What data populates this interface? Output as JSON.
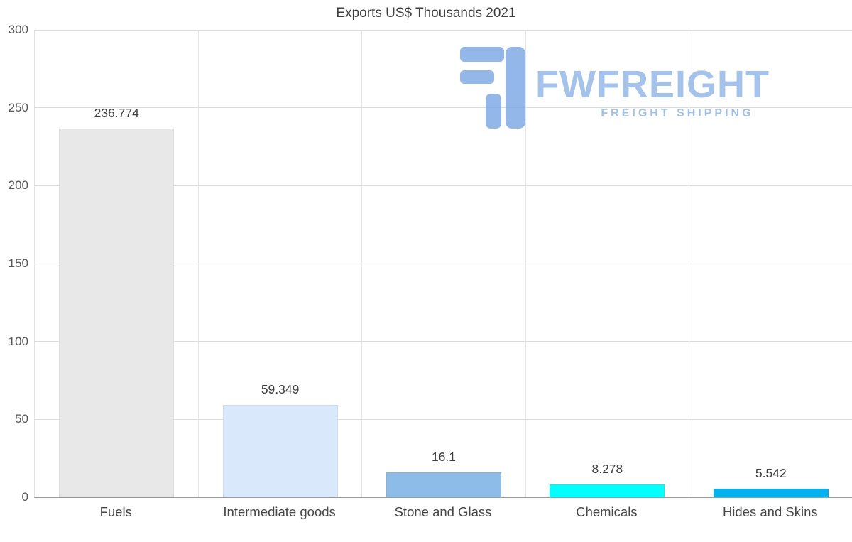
{
  "chart_data": {
    "type": "bar",
    "title": "Exports US$ Thousands 2021",
    "categories": [
      "Fuels",
      "Intermediate goods",
      "Stone and Glass",
      "Chemicals",
      "Hides and Skins"
    ],
    "values": [
      236.774,
      59.349,
      16.1,
      8.278,
      5.542
    ],
    "value_labels": [
      "236.774",
      "59.349",
      "16.1",
      "8.278",
      "5.542"
    ],
    "bar_colors": [
      "#e8e8e8",
      "#d9e8fb",
      "#8dbce8",
      "#00ffff",
      "#00b2ef"
    ],
    "xlabel": "",
    "ylabel": "",
    "ylim": [
      0,
      300
    ],
    "yticks": [
      0,
      50,
      100,
      150,
      200,
      250,
      300
    ],
    "grid": true,
    "legend": "none"
  },
  "watermark": {
    "brand": "FWFREIGHT",
    "tagline": "FREIGHT SHIPPING",
    "text_color": "#a3c2ec",
    "icon_color": "#7da8e5"
  }
}
